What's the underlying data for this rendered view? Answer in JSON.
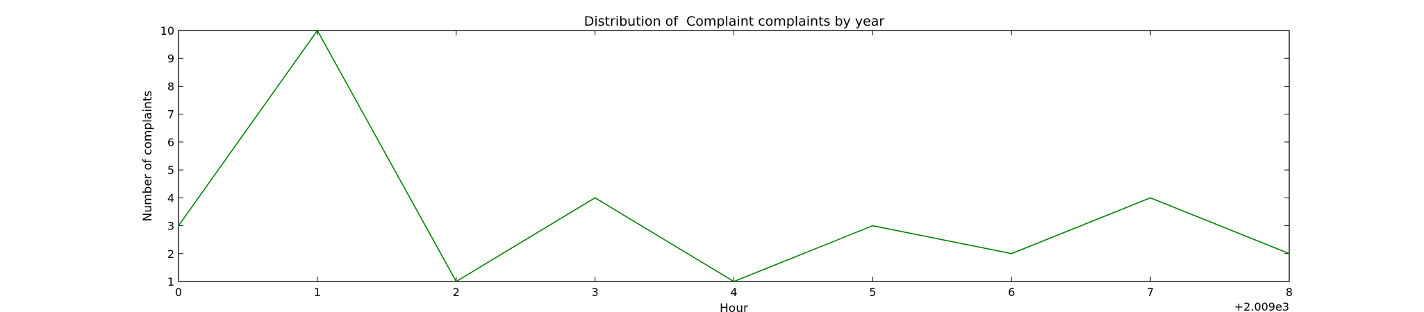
{
  "chart_data": {
    "type": "line",
    "title": "Distribution of  Complaint complaints by year",
    "xlabel": "Hour",
    "ylabel": "Number of complaints",
    "x_offset_label": "+2.009e3",
    "x": [
      0,
      1,
      2,
      3,
      4,
      5,
      6,
      7,
      8
    ],
    "xlim": [
      0,
      8
    ],
    "ylim": [
      1,
      10
    ],
    "xticks": [
      "0",
      "1",
      "2",
      "3",
      "4",
      "5",
      "6",
      "7",
      "8"
    ],
    "yticks": [
      "1",
      "2",
      "3",
      "4",
      "5",
      "6",
      "7",
      "8",
      "9",
      "10"
    ],
    "grid": false,
    "series": [
      {
        "values": [
          3,
          10,
          1,
          4,
          1,
          3,
          2,
          4,
          2
        ],
        "color": "#008000"
      }
    ]
  }
}
